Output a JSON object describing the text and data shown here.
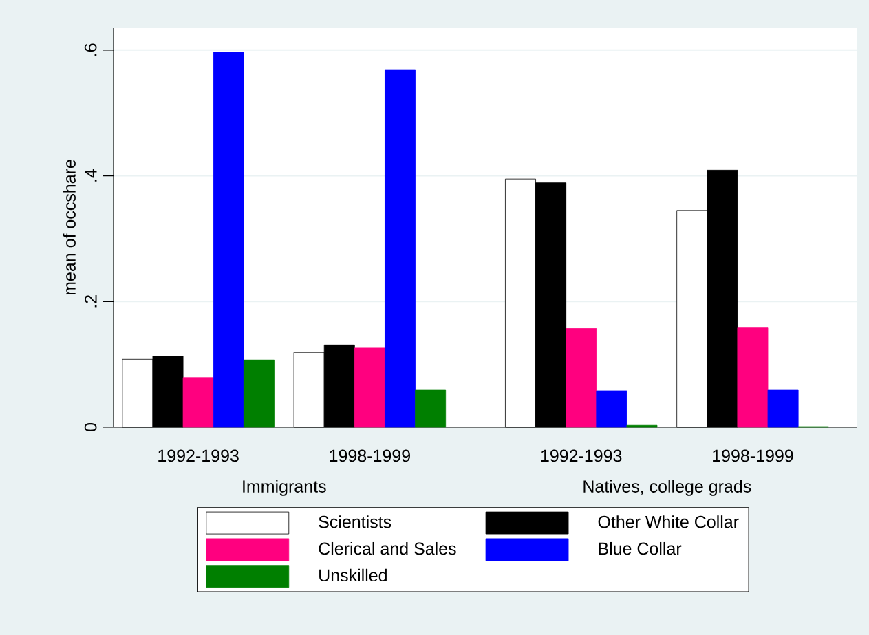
{
  "chart_data": {
    "type": "bar",
    "ylabel": "mean of occshare",
    "categories": [
      "1992-1993",
      "1998-1999",
      "1992-1993",
      "1998-1999"
    ],
    "annotations": [
      "Immigrants",
      "Natives, college grads"
    ],
    "series": [
      {
        "name": "Scientists",
        "color": "#ffffff",
        "values": [
          0.108,
          0.119,
          0.395,
          0.345
        ]
      },
      {
        "name": "Other White Collar",
        "color": "#000000",
        "values": [
          0.113,
          0.131,
          0.389,
          0.409
        ]
      },
      {
        "name": "Clerical and Sales",
        "color": "#ff007f",
        "values": [
          0.079,
          0.126,
          0.157,
          0.158
        ]
      },
      {
        "name": "Blue Collar",
        "color": "#0000ff",
        "values": [
          0.597,
          0.568,
          0.058,
          0.059
        ]
      },
      {
        "name": "Unskilled",
        "color": "#007f00",
        "values": [
          0.107,
          0.059,
          0.003,
          0.001
        ]
      }
    ],
    "ylim": [
      0,
      0.636
    ],
    "yticks": [
      0,
      {
        "value": 0.2,
        "label": ".2"
      },
      {
        "value": 0.4,
        "label": ".4"
      },
      {
        "value": 0.6,
        "label": ".6"
      }
    ],
    "grid": "y",
    "legend": "bottom"
  }
}
